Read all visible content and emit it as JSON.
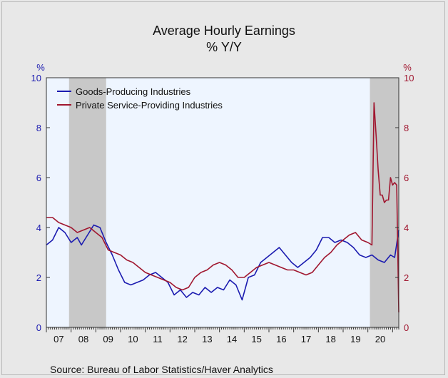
{
  "chart_data": {
    "type": "line",
    "title": "Average Hourly Earnings",
    "subtitle": "% Y/Y",
    "left_axis": {
      "unit_label": "%",
      "ticks": [
        "0",
        "2",
        "4",
        "6",
        "8",
        "10"
      ],
      "ylim": [
        0,
        10
      ],
      "color": "#1b1bb0"
    },
    "right_axis": {
      "unit_label": "%",
      "ticks": [
        "0",
        "2",
        "4",
        "6",
        "8",
        "10"
      ],
      "ylim": [
        0,
        10
      ],
      "color": "#a0162f"
    },
    "x_tick_labels": [
      "07",
      "08",
      "09",
      "10",
      "11",
      "12",
      "13",
      "14",
      "15",
      "16",
      "17",
      "18",
      "19",
      "20"
    ],
    "x_range": [
      "2007-01",
      "2021-04"
    ],
    "recessions": [
      {
        "start": "2007-12",
        "end": "2009-06"
      },
      {
        "start": "2020-02",
        "end": "2021-04"
      }
    ],
    "grid": false,
    "legend_position": "top-left",
    "series": [
      {
        "name": "Goods-Producing Industries",
        "color": "#1b1bb0",
        "axis": "left",
        "points": [
          [
            "2007-01",
            3.3
          ],
          [
            "2007-04",
            3.5
          ],
          [
            "2007-07",
            4.0
          ],
          [
            "2007-10",
            3.8
          ],
          [
            "2008-01",
            3.4
          ],
          [
            "2008-04",
            3.6
          ],
          [
            "2008-06",
            3.3
          ],
          [
            "2008-09",
            3.7
          ],
          [
            "2008-12",
            4.1
          ],
          [
            "2009-03",
            4.0
          ],
          [
            "2009-06",
            3.4
          ],
          [
            "2009-09",
            2.9
          ],
          [
            "2009-12",
            2.3
          ],
          [
            "2010-03",
            1.8
          ],
          [
            "2010-06",
            1.7
          ],
          [
            "2010-09",
            1.8
          ],
          [
            "2010-12",
            1.9
          ],
          [
            "2011-03",
            2.1
          ],
          [
            "2011-06",
            2.2
          ],
          [
            "2011-09",
            2.0
          ],
          [
            "2011-12",
            1.8
          ],
          [
            "2012-03",
            1.3
          ],
          [
            "2012-06",
            1.5
          ],
          [
            "2012-09",
            1.2
          ],
          [
            "2012-12",
            1.4
          ],
          [
            "2013-03",
            1.3
          ],
          [
            "2013-06",
            1.6
          ],
          [
            "2013-09",
            1.4
          ],
          [
            "2013-12",
            1.6
          ],
          [
            "2014-03",
            1.5
          ],
          [
            "2014-06",
            1.9
          ],
          [
            "2014-09",
            1.7
          ],
          [
            "2014-12",
            1.1
          ],
          [
            "2015-03",
            2.0
          ],
          [
            "2015-06",
            2.1
          ],
          [
            "2015-09",
            2.6
          ],
          [
            "2015-12",
            2.8
          ],
          [
            "2016-03",
            3.0
          ],
          [
            "2016-06",
            3.2
          ],
          [
            "2016-09",
            2.9
          ],
          [
            "2016-12",
            2.6
          ],
          [
            "2017-03",
            2.4
          ],
          [
            "2017-06",
            2.6
          ],
          [
            "2017-09",
            2.8
          ],
          [
            "2017-12",
            3.1
          ],
          [
            "2018-03",
            3.6
          ],
          [
            "2018-06",
            3.6
          ],
          [
            "2018-09",
            3.4
          ],
          [
            "2018-12",
            3.5
          ],
          [
            "2019-03",
            3.4
          ],
          [
            "2019-06",
            3.2
          ],
          [
            "2019-09",
            2.9
          ],
          [
            "2019-12",
            2.8
          ],
          [
            "2020-03",
            2.9
          ],
          [
            "2020-06",
            2.7
          ],
          [
            "2020-09",
            2.6
          ],
          [
            "2020-12",
            2.9
          ],
          [
            "2021-02",
            2.8
          ],
          [
            "2021-04",
            3.9
          ]
        ]
      },
      {
        "name": "Private Service-Providing Industries",
        "color": "#a0162f",
        "axis": "right",
        "points": [
          [
            "2007-01",
            4.4
          ],
          [
            "2007-04",
            4.4
          ],
          [
            "2007-07",
            4.2
          ],
          [
            "2007-10",
            4.1
          ],
          [
            "2008-01",
            4.0
          ],
          [
            "2008-04",
            3.8
          ],
          [
            "2008-07",
            3.9
          ],
          [
            "2008-10",
            4.0
          ],
          [
            "2009-01",
            3.8
          ],
          [
            "2009-04",
            3.6
          ],
          [
            "2009-07",
            3.1
          ],
          [
            "2009-10",
            3.0
          ],
          [
            "2010-01",
            2.9
          ],
          [
            "2010-04",
            2.7
          ],
          [
            "2010-07",
            2.6
          ],
          [
            "2010-10",
            2.4
          ],
          [
            "2011-01",
            2.2
          ],
          [
            "2011-04",
            2.1
          ],
          [
            "2011-07",
            2.0
          ],
          [
            "2011-10",
            1.9
          ],
          [
            "2012-01",
            1.8
          ],
          [
            "2012-04",
            1.6
          ],
          [
            "2012-07",
            1.5
          ],
          [
            "2012-10",
            1.6
          ],
          [
            "2013-01",
            2.0
          ],
          [
            "2013-04",
            2.2
          ],
          [
            "2013-07",
            2.3
          ],
          [
            "2013-10",
            2.5
          ],
          [
            "2014-01",
            2.6
          ],
          [
            "2014-04",
            2.5
          ],
          [
            "2014-07",
            2.3
          ],
          [
            "2014-10",
            2.0
          ],
          [
            "2015-01",
            2.0
          ],
          [
            "2015-04",
            2.2
          ],
          [
            "2015-07",
            2.4
          ],
          [
            "2015-10",
            2.5
          ],
          [
            "2016-01",
            2.6
          ],
          [
            "2016-04",
            2.5
          ],
          [
            "2016-07",
            2.4
          ],
          [
            "2016-10",
            2.3
          ],
          [
            "2017-01",
            2.3
          ],
          [
            "2017-04",
            2.2
          ],
          [
            "2017-07",
            2.1
          ],
          [
            "2017-10",
            2.2
          ],
          [
            "2018-01",
            2.5
          ],
          [
            "2018-04",
            2.8
          ],
          [
            "2018-07",
            3.0
          ],
          [
            "2018-10",
            3.3
          ],
          [
            "2019-01",
            3.5
          ],
          [
            "2019-04",
            3.7
          ],
          [
            "2019-07",
            3.8
          ],
          [
            "2019-10",
            3.5
          ],
          [
            "2020-01",
            3.4
          ],
          [
            "2020-03",
            3.3
          ],
          [
            "2020-04",
            9.0
          ],
          [
            "2020-05",
            7.7
          ],
          [
            "2020-06",
            6.3
          ],
          [
            "2020-07",
            5.3
          ],
          [
            "2020-08",
            5.3
          ],
          [
            "2020-09",
            5.0
          ],
          [
            "2020-10",
            5.1
          ],
          [
            "2020-11",
            5.1
          ],
          [
            "2020-12",
            6.0
          ],
          [
            "2021-01",
            5.7
          ],
          [
            "2021-02",
            5.8
          ],
          [
            "2021-03",
            5.7
          ],
          [
            "2021-04",
            0.6
          ]
        ]
      }
    ]
  },
  "source": "Source:  Bureau of Labor Statistics/Haver Analytics"
}
